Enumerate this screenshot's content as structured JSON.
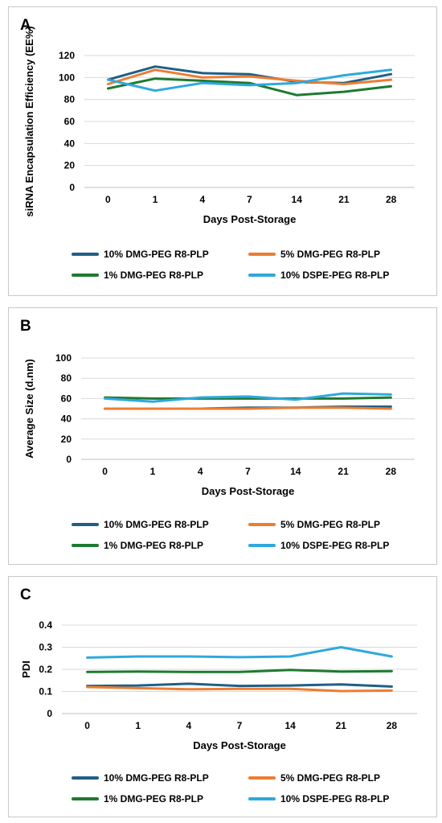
{
  "chart_data": [
    {
      "panel": "A",
      "type": "line",
      "categories": [
        "0",
        "1",
        "4",
        "7",
        "14",
        "21",
        "28"
      ],
      "xlabel": "Days Post-Storage",
      "ylabel": "siRNA Encapsulation Efficiency (EE%)",
      "ylim": [
        0,
        120
      ],
      "yticks": [
        0,
        20,
        40,
        60,
        80,
        100,
        120
      ],
      "grid": true,
      "legend_position": "bottom",
      "series": [
        {
          "name": "10% DMG-PEG R8-PLP",
          "color": "#1f5f86",
          "values": [
            98,
            110,
            104,
            103,
            96,
            95,
            103
          ]
        },
        {
          "name": "5% DMG-PEG R8-PLP",
          "color": "#ed7d31",
          "values": [
            94,
            107,
            100,
            101,
            97,
            94,
            98
          ]
        },
        {
          "name": "1% DMG-PEG R8-PLP",
          "color": "#1e7a2e",
          "values": [
            90,
            99,
            97,
            95,
            84,
            87,
            92
          ]
        },
        {
          "name": "10% DSPE-PEG R8-PLP",
          "color": "#2ea9dd",
          "values": [
            98,
            88,
            95,
            93,
            95,
            102,
            107
          ]
        }
      ]
    },
    {
      "panel": "B",
      "type": "line",
      "categories": [
        "0",
        "1",
        "4",
        "7",
        "14",
        "21",
        "28"
      ],
      "xlabel": "Days Post-Storage",
      "ylabel": "Average Size (d.nm)",
      "ylim": [
        0,
        100
      ],
      "yticks": [
        0,
        20,
        40,
        60,
        80,
        100
      ],
      "grid": true,
      "legend_position": "bottom",
      "series": [
        {
          "name": "10% DMG-PEG R8-PLP",
          "color": "#1f5f86",
          "values": [
            50,
            50,
            50,
            51,
            51,
            52,
            52
          ]
        },
        {
          "name": "5% DMG-PEG R8-PLP",
          "color": "#ed7d31",
          "values": [
            50,
            50,
            50,
            50,
            51,
            51,
            50
          ]
        },
        {
          "name": "1% DMG-PEG R8-PLP",
          "color": "#1e7a2e",
          "values": [
            61,
            60,
            60,
            60,
            60,
            60,
            61
          ]
        },
        {
          "name": "10% DSPE-PEG R8-PLP",
          "color": "#2ea9dd",
          "values": [
            60,
            57,
            61,
            62,
            59,
            65,
            64
          ]
        }
      ]
    },
    {
      "panel": "C",
      "type": "line",
      "categories": [
        "0",
        "1",
        "4",
        "7",
        "14",
        "21",
        "28"
      ],
      "xlabel": "Days Post-Storage",
      "ylabel": "PDI",
      "ylim": [
        0,
        0.4
      ],
      "yticks": [
        0,
        0.1,
        0.2,
        0.3,
        0.4
      ],
      "grid": true,
      "legend_position": "bottom",
      "series": [
        {
          "name": "10% DMG-PEG R8-PLP",
          "color": "#1f5f86",
          "values": [
            0.125,
            0.127,
            0.135,
            0.125,
            0.127,
            0.132,
            0.122
          ]
        },
        {
          "name": "5% DMG-PEG R8-PLP",
          "color": "#ed7d31",
          "values": [
            0.12,
            0.115,
            0.11,
            0.112,
            0.112,
            0.102,
            0.104
          ]
        },
        {
          "name": "1% DMG-PEG R8-PLP",
          "color": "#1e7a2e",
          "values": [
            0.188,
            0.19,
            0.188,
            0.188,
            0.197,
            0.19,
            0.192
          ]
        },
        {
          "name": "10% DSPE-PEG R8-PLP",
          "color": "#2ea9dd",
          "values": [
            0.253,
            0.258,
            0.258,
            0.255,
            0.258,
            0.3,
            0.258
          ]
        }
      ]
    }
  ]
}
